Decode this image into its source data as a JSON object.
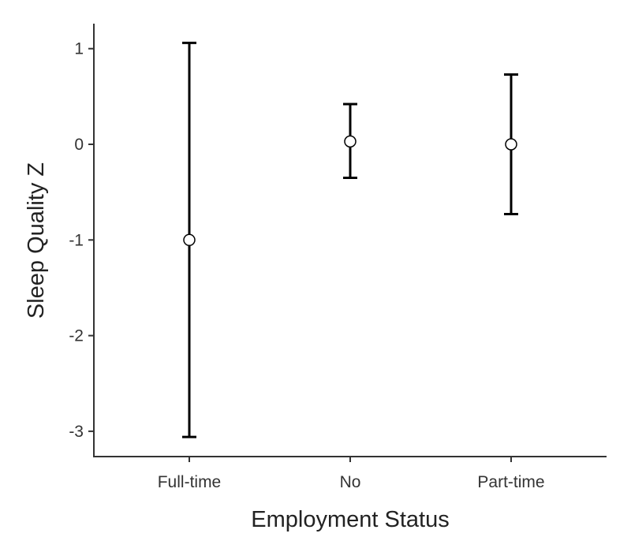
{
  "chart_data": {
    "type": "scatter",
    "subtype": "point-with-error-bars",
    "xlabel": "Employment Status",
    "ylabel": "Sleep Quality Z",
    "categories": [
      "Full-time",
      "No",
      "Part-time"
    ],
    "series": [
      {
        "values": [
          -1.0,
          0.03,
          0.0
        ],
        "lower": [
          -3.06,
          -0.35,
          -0.73
        ],
        "upper": [
          1.06,
          0.42,
          0.73
        ]
      }
    ],
    "y_ticks": [
      {
        "value": -3,
        "label": "-3"
      },
      {
        "value": -2,
        "label": "-2"
      },
      {
        "value": -1,
        "label": "-1"
      },
      {
        "value": 0,
        "label": "0"
      },
      {
        "value": 1,
        "label": "1"
      }
    ],
    "ylim": [
      -3.26,
      1.26
    ],
    "grid": false,
    "legend": "none",
    "colors": {
      "marks": "#000000",
      "point_fill": "#ffffff",
      "axis": "#333333"
    }
  }
}
